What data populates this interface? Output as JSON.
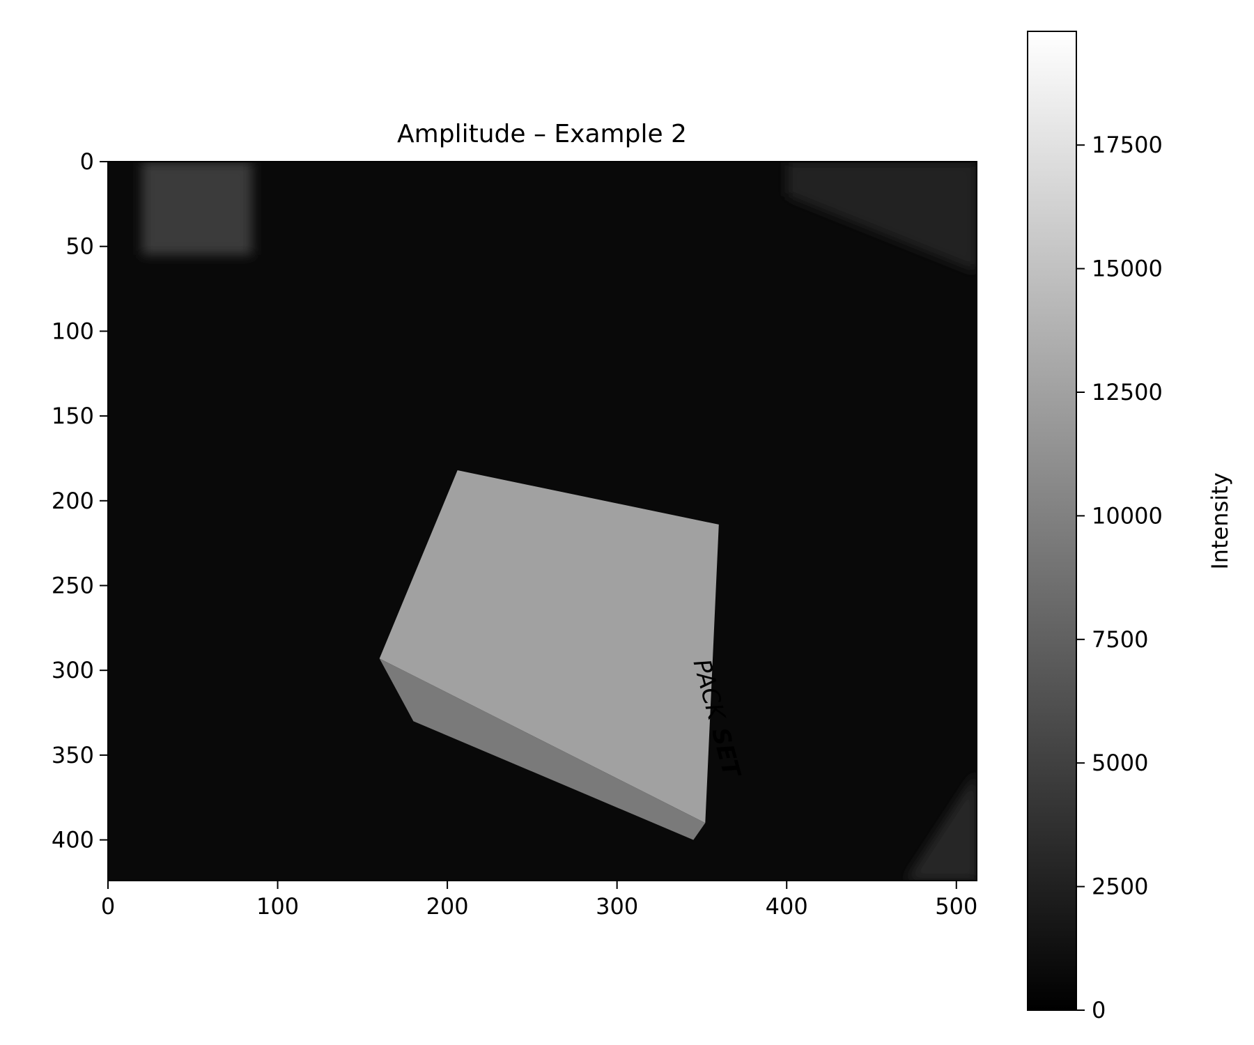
{
  "chart_data": {
    "type": "heatmap",
    "title": "Amplitude – Example 2",
    "xlabel": "",
    "ylabel": "",
    "xlim": [
      0,
      512
    ],
    "ylim": [
      424,
      0
    ],
    "x_ticks": [
      0,
      100,
      200,
      300,
      400,
      500
    ],
    "y_ticks": [
      0,
      50,
      100,
      150,
      200,
      250,
      300,
      350,
      400
    ],
    "grid": false,
    "colormap": "gray",
    "colorbar": {
      "label": "Intensity",
      "range": [
        0,
        19800
      ],
      "ticks": [
        0,
        2500,
        5000,
        7500,
        10000,
        12500,
        15000,
        17500
      ]
    },
    "image": {
      "background_intensity": 700,
      "regions": [
        {
          "name": "box top face",
          "polygon": [
            [
              206,
              182
            ],
            [
              360,
              214
            ],
            [
              352,
              390
            ],
            [
              160,
              293
            ]
          ],
          "intensity": 12500
        },
        {
          "name": "box front face",
          "polygon": [
            [
              160,
              293
            ],
            [
              352,
              390
            ],
            [
              345,
              400
            ],
            [
              180,
              330
            ]
          ],
          "intensity": 9500
        },
        {
          "name": "shelf top left",
          "polygon": [
            [
              20,
              0
            ],
            [
              85,
              0
            ],
            [
              85,
              55
            ],
            [
              20,
              55
            ]
          ],
          "intensity": 4500
        },
        {
          "name": "bright corner top right",
          "polygon": [
            [
              400,
              0
            ],
            [
              512,
              0
            ],
            [
              512,
              65
            ],
            [
              400,
              20
            ]
          ],
          "intensity": 2500
        },
        {
          "name": "bright corner bottom right",
          "polygon": [
            [
              470,
              424
            ],
            [
              512,
              360
            ],
            [
              512,
              424
            ]
          ],
          "intensity": 3000
        }
      ],
      "box_print": [
        "PACK",
        "SET"
      ]
    }
  },
  "colors": {
    "axis": "#000000",
    "background": "#ffffff"
  }
}
